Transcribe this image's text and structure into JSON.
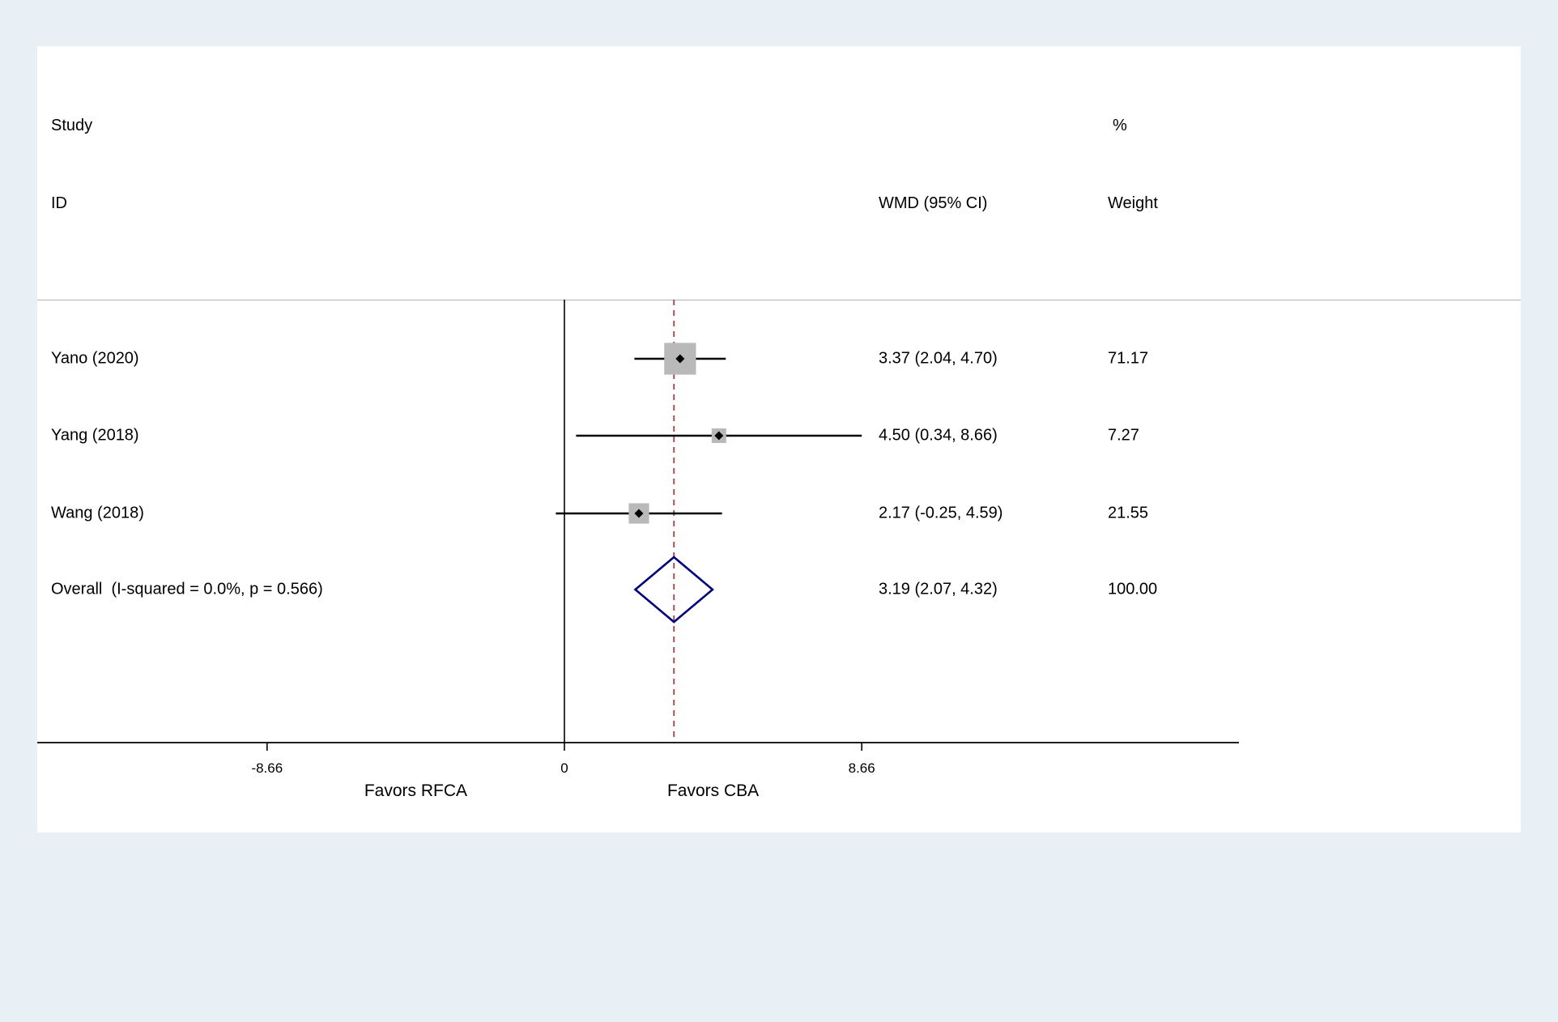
{
  "chart_data": {
    "type": "forest",
    "columns": {
      "study_header_line1": "Study",
      "study_header_line2": "ID",
      "effect_header": "WMD (95% CI)",
      "weight_header_line1": "%",
      "weight_header_line2": "Weight"
    },
    "studies": [
      {
        "id": "Yano (2020)",
        "wmd": 3.37,
        "ci_low": 2.04,
        "ci_high": 4.7,
        "effect_label": "3.37 (2.04, 4.70)",
        "weight": 71.17,
        "weight_label": "71.17"
      },
      {
        "id": "Yang (2018)",
        "wmd": 4.5,
        "ci_low": 0.34,
        "ci_high": 8.66,
        "effect_label": "4.50 (0.34, 8.66)",
        "weight": 7.27,
        "weight_label": "7.27"
      },
      {
        "id": "Wang (2018)",
        "wmd": 2.17,
        "ci_low": -0.25,
        "ci_high": 4.59,
        "effect_label": "2.17 (-0.25, 4.59)",
        "weight": 21.55,
        "weight_label": "21.55"
      }
    ],
    "overall": {
      "id": "Overall  (I-squared = 0.0%, p = 0.566)",
      "wmd": 3.19,
      "ci_low": 2.07,
      "ci_high": 4.32,
      "effect_label": "3.19 (2.07, 4.32)",
      "weight_label": "100.00"
    },
    "axis": {
      "ticks": [
        -8.66,
        0,
        8.66
      ],
      "tick_labels": [
        "-8.66",
        "0",
        "8.66"
      ],
      "left_label": "Favors RFCA",
      "right_label": "Favors CBA"
    },
    "null_line_x": 0,
    "overall_line_x": 3.19,
    "colors": {
      "background": "#e9f0f5",
      "marker_fill": "#b9b9b9",
      "ci_line": "#000000",
      "dashed_line": "#a23f3f",
      "overall_diamond_stroke": "#00007d",
      "separator": "#b4b4b4"
    }
  }
}
